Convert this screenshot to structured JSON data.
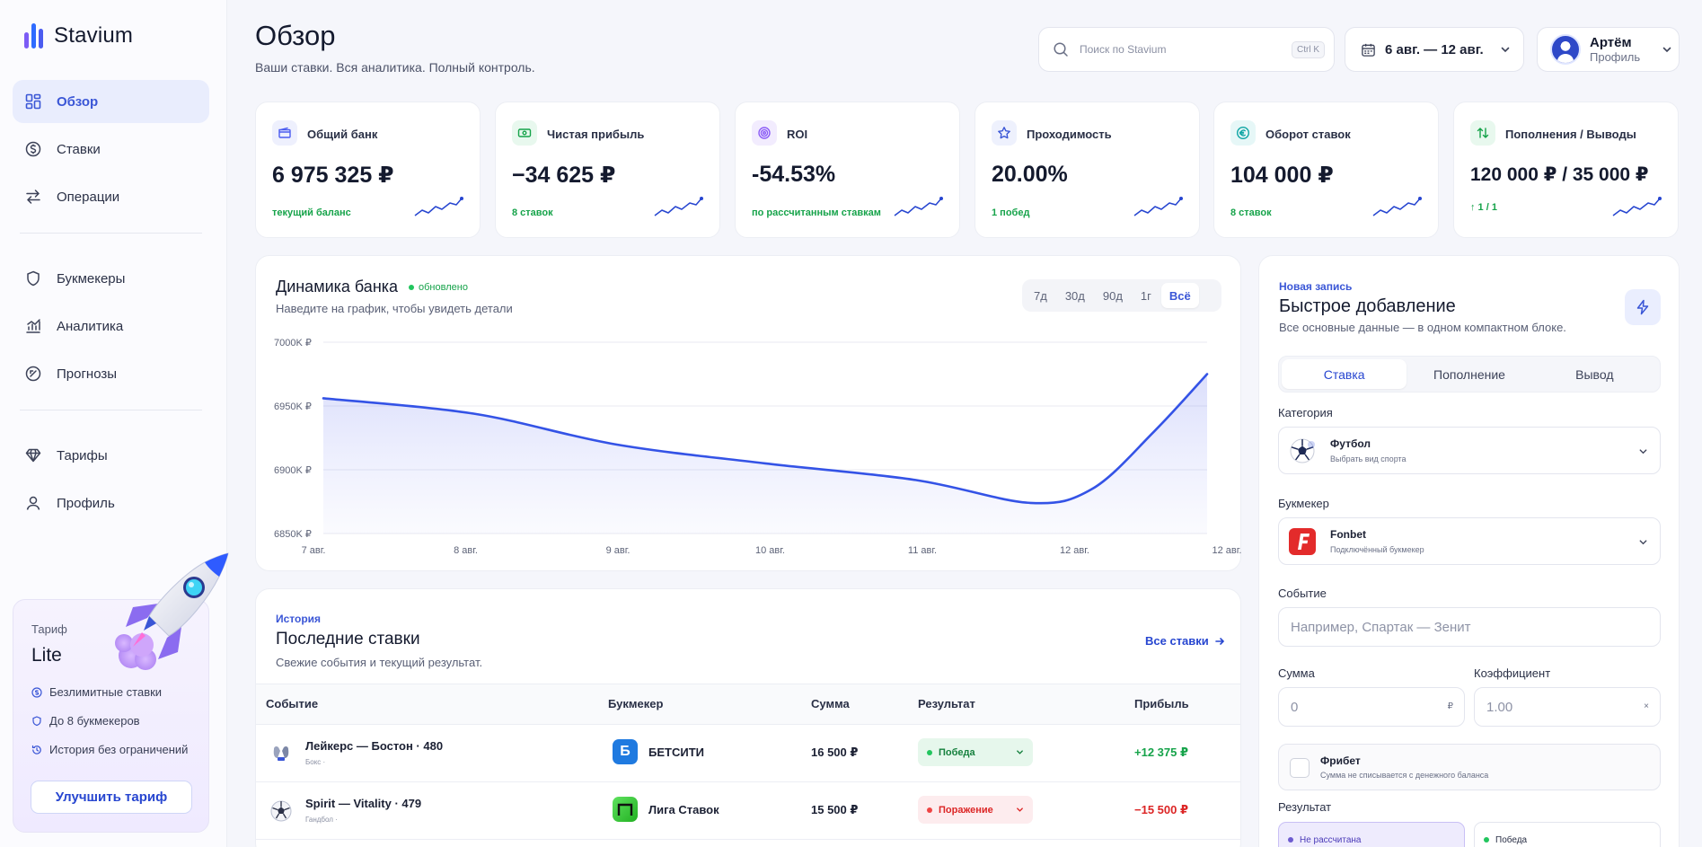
{
  "brand": {
    "name": "Stavium",
    "colors": [
      "#2f6bff",
      "#4b5cf0",
      "#7c5cf5"
    ]
  },
  "sidebar": {
    "items": [
      {
        "label": "Обзор",
        "icon": "dashboard-icon",
        "active": true
      },
      {
        "label": "Ставки",
        "icon": "coin-icon"
      },
      {
        "label": "Операции",
        "icon": "swap-icon"
      },
      {
        "label": "Букмекеры",
        "icon": "shield-icon"
      },
      {
        "label": "Аналитика",
        "icon": "analytics-icon"
      },
      {
        "label": "Прогнозы",
        "icon": "gauge-icon"
      },
      {
        "label": "Тарифы",
        "icon": "diamond-icon"
      },
      {
        "label": "Профиль",
        "icon": "user-icon"
      }
    ],
    "plan": {
      "label": "Тариф",
      "name": "Lite",
      "features": [
        "Безлимитные ставки",
        "До 8 букмекеров",
        "История без ограничений"
      ],
      "upgrade_label": "Улучшить тариф"
    }
  },
  "header": {
    "title": "Обзор",
    "subtitle": "Ваши ставки. Вся аналитика. Полный контроль.",
    "search_placeholder": "Поиск по Stavium",
    "search_shortcut": "Ctrl K",
    "date_range": "6 авг. — 12 авг.",
    "user_name": "Артём",
    "user_role": "Профиль"
  },
  "kpis": [
    {
      "label": "Общий банк",
      "value": "6 975 325 ₽",
      "sub": "текущий баланс",
      "icon": "wallet-icon",
      "accent": "#4b5cf0",
      "bg": "#eef0fd"
    },
    {
      "label": "Чистая прибыль",
      "value": "−34 625 ₽",
      "sub": "8 ставок",
      "icon": "cash-icon",
      "accent": "#16a34a",
      "bg": "#e8f8ee"
    },
    {
      "label": "ROI",
      "value": "-54.53%",
      "sub": "по рассчитанным ставкам",
      "icon": "target-icon",
      "accent": "#8b5cf6",
      "bg": "#f2ecfe"
    },
    {
      "label": "Проходимость",
      "value": "20.00%",
      "sub": "1 побед",
      "icon": "star-icon",
      "accent": "#3a56d6",
      "bg": "#eef1fd"
    },
    {
      "label": "Оборот ставок",
      "value": "104 000 ₽",
      "sub": "8 ставок",
      "icon": "euro-icon",
      "accent": "#0ea5a4",
      "bg": "#e6f7f7"
    },
    {
      "label": "Пополнения / Выводы",
      "value": "120 000 ₽ / 35 000 ₽",
      "sub": "↑ 1 / 1",
      "icon": "transfer-icon",
      "accent": "#16a34a",
      "bg": "#e8f8ee"
    }
  ],
  "bank_chart": {
    "title": "Динамика банка",
    "status": "обновлено",
    "subtitle": "Наведите на график, чтобы увидеть детали",
    "ranges": [
      "7д",
      "30д",
      "90д",
      "1г",
      "Всё"
    ],
    "active_range": "Всё"
  },
  "chart_data": {
    "type": "area",
    "title": "Динамика банка",
    "x": [
      "7 авг.",
      "8 авг.",
      "9 авг.",
      "10 авг.",
      "11 авг.",
      "11.7 авг.",
      "12 авг.",
      "12.5 авг.",
      "13 авг."
    ],
    "x_tick_labels": [
      "7 авг.",
      "8 авг.",
      "9 авг.",
      "10 авг.",
      "11 авг.",
      "12 авг.",
      "12 авг."
    ],
    "y_tick_labels": [
      "7000K ₽",
      "6950K ₽",
      "6900K ₽",
      "6850K ₽"
    ],
    "ylim": [
      6850,
      7000
    ],
    "y_unit": "K ₽",
    "values": [
      6956,
      6944,
      6920,
      6905,
      6892,
      6874,
      6885,
      6930,
      6975
    ],
    "grid": true,
    "color": "#3453e6"
  },
  "bets": {
    "kicker": "История",
    "title": "Последние ставки",
    "subtitle": "Свежие события и текущий результат.",
    "all_label": "Все ставки",
    "columns": [
      "Событие",
      "Букмекер",
      "Сумма",
      "Результат",
      "Прибыль"
    ],
    "rows": [
      {
        "event": "Лейкерс — Бостон · 480",
        "meta": "Бокс ·",
        "sport_icon": "boxing-icon",
        "bookmaker": "БЕТСИТИ",
        "bk_letter": "Б",
        "bk_color": "#1f7ae0",
        "amount": "16 500 ₽",
        "result": "Победа",
        "win": true,
        "profit": "+12 375 ₽"
      },
      {
        "event": "Spirit — Vitality · 479",
        "meta": "Гандбол ·",
        "sport_icon": "ball-icon",
        "bookmaker": "Лига Ставок",
        "bk_letter": "П",
        "bk_color": "#3ccf3c",
        "amount": "15 500 ₽",
        "result": "Поражение",
        "win": false,
        "profit": "−15 500 ₽"
      }
    ]
  },
  "quick_add": {
    "kicker": "Новая запись",
    "title": "Быстрое добавление",
    "subtitle": "Все основные данные — в одном компактном блоке.",
    "tabs": [
      "Ставка",
      "Пополнение",
      "Вывод"
    ],
    "active_tab": "Ставка",
    "category_label": "Категория",
    "category_value": "Футбол",
    "category_hint": "Выбрать вид спорта",
    "bookmaker_label": "Букмекер",
    "bookmaker_value": "Fonbet",
    "bookmaker_hint": "Подключённый букмекер",
    "event_label": "Событие",
    "event_placeholder": "Например, Спартак — Зенит",
    "sum_label": "Сумма",
    "sum_placeholder": "0",
    "sum_suffix": "₽",
    "coef_label": "Коэффициент",
    "coef_placeholder": "1.00",
    "coef_suffix": "×",
    "freebet_title": "Фрибет",
    "freebet_hint": "Сумма не списывается с денежного баланса",
    "result_label": "Результат",
    "result_options": [
      "Не рассчитана",
      "Победа"
    ]
  }
}
